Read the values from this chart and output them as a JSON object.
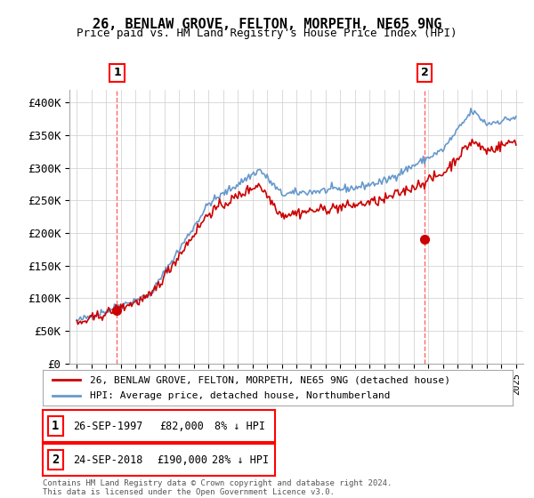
{
  "title": "26, BENLAW GROVE, FELTON, MORPETH, NE65 9NG",
  "subtitle": "Price paid vs. HM Land Registry's House Price Index (HPI)",
  "ylim": [
    0,
    420000
  ],
  "yticks": [
    0,
    50000,
    100000,
    150000,
    200000,
    250000,
    300000,
    350000,
    400000
  ],
  "ytick_labels": [
    "£0",
    "£50K",
    "£100K",
    "£150K",
    "£200K",
    "£250K",
    "£300K",
    "£350K",
    "£400K"
  ],
  "sale1_x": 1997.75,
  "sale1_price": 82000,
  "sale1_label": "1",
  "sale1_date_str": "26-SEP-1997",
  "sale1_amount": "£82,000",
  "sale1_hpi": "8% ↓ HPI",
  "sale2_x": 2018.75,
  "sale2_price": 190000,
  "sale2_label": "2",
  "sale2_date_str": "24-SEP-2018",
  "sale2_amount": "£190,000",
  "sale2_hpi": "28% ↓ HPI",
  "legend_label1": "26, BENLAW GROVE, FELTON, MORPETH, NE65 9NG (detached house)",
  "legend_label2": "HPI: Average price, detached house, Northumberland",
  "footnote": "Contains HM Land Registry data © Crown copyright and database right 2024.\nThis data is licensed under the Open Government Licence v3.0.",
  "line_color_red": "#cc0000",
  "line_color_blue": "#6699cc",
  "background_color": "#ffffff",
  "grid_color": "#cccccc",
  "dashed_color": "#ff6666"
}
